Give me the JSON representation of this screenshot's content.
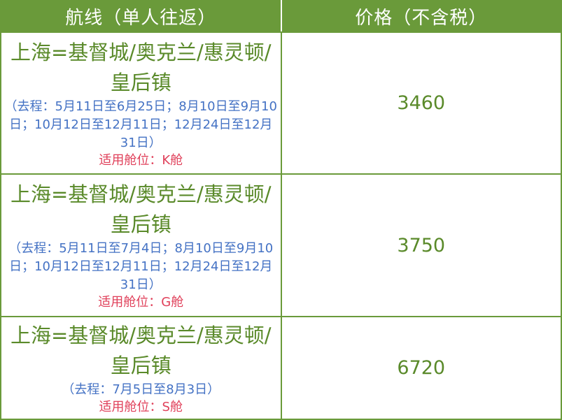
{
  "header": {
    "route": "航线（单人往返）",
    "price": "价格（不含税）"
  },
  "rows": [
    {
      "route": "上海=基督城/奥克兰/惠灵顿/皇后镇",
      "dates": "（去程：5月11日至6月25日；8月10日至9月10日；10月12日至12月11日；12月24日至12月31日）",
      "cabin": "适用舱位：K舱",
      "price": "3460"
    },
    {
      "route": "上海=基督城/奥克兰/惠灵顿/皇后镇",
      "dates": "（去程：5月11日至7月4日；8月10日至9月10日；10月12日至12月11日；12月24日至12月31日）",
      "cabin": "适用舱位：G舱",
      "price": "3750"
    },
    {
      "route": "上海=基督城/奥克兰/惠灵顿/皇后镇",
      "dates": "（去程：7月5日至8月3日）",
      "cabin": "适用舱位：S舱",
      "price": "6720"
    }
  ],
  "colors": {
    "header_bg": "#6a9a3a",
    "route_text": "#5a8a2a",
    "dates_text": "#4472c4",
    "cabin_text": "#e0405a"
  }
}
